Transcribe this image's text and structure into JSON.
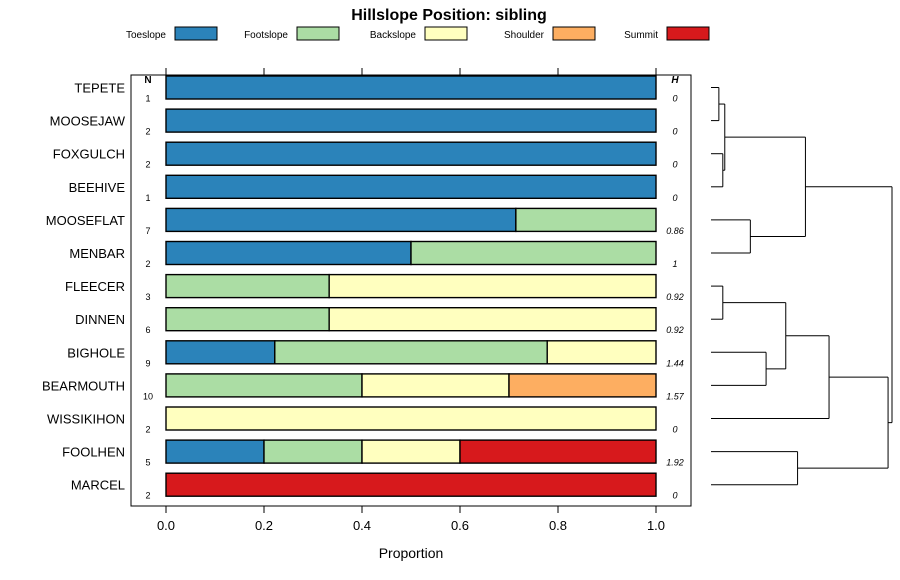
{
  "chart_data": {
    "type": "bar",
    "stacked": true,
    "orientation": "horizontal",
    "title": "Hillslope Position: sibling",
    "xlabel": "Proportion",
    "xlim": [
      0,
      1
    ],
    "xticks": [
      "0.0",
      "0.2",
      "0.4",
      "0.6",
      "0.8",
      "1.0"
    ],
    "n_header": "N",
    "h_header": "H",
    "legend_position": "top",
    "series": [
      {
        "name": "Toeslope",
        "color": "#2b83ba"
      },
      {
        "name": "Footslope",
        "color": "#abdda4"
      },
      {
        "name": "Backslope",
        "color": "#ffffbf"
      },
      {
        "name": "Shoulder",
        "color": "#fdae61"
      },
      {
        "name": "Summit",
        "color": "#d7191c"
      }
    ],
    "rows": [
      {
        "label": "TEPETE",
        "n": "1",
        "h": "0",
        "values": [
          1,
          0,
          0,
          0,
          0
        ]
      },
      {
        "label": "MOOSEJAW",
        "n": "2",
        "h": "0",
        "values": [
          1,
          0,
          0,
          0,
          0
        ]
      },
      {
        "label": "FOXGULCH",
        "n": "2",
        "h": "0",
        "values": [
          1,
          0,
          0,
          0,
          0
        ]
      },
      {
        "label": "BEEHIVE",
        "n": "1",
        "h": "0",
        "values": [
          1,
          0,
          0,
          0,
          0
        ]
      },
      {
        "label": "MOOSEFLAT",
        "n": "7",
        "h": "0.86",
        "values": [
          0.714,
          0.286,
          0,
          0,
          0
        ]
      },
      {
        "label": "MENBAR",
        "n": "2",
        "h": "1",
        "values": [
          0.5,
          0.5,
          0,
          0,
          0
        ]
      },
      {
        "label": "FLEECER",
        "n": "3",
        "h": "0.92",
        "values": [
          0,
          0.333,
          0.667,
          0,
          0
        ]
      },
      {
        "label": "DINNEN",
        "n": "6",
        "h": "0.92",
        "values": [
          0,
          0.333,
          0.667,
          0,
          0
        ]
      },
      {
        "label": "BIGHOLE",
        "n": "9",
        "h": "1.44",
        "values": [
          0.222,
          0.556,
          0.222,
          0,
          0
        ]
      },
      {
        "label": "BEARMOUTH",
        "n": "10",
        "h": "1.57",
        "values": [
          0,
          0.4,
          0.3,
          0.3,
          0
        ]
      },
      {
        "label": "WISSIKIHON",
        "n": "2",
        "h": "0",
        "values": [
          0,
          0,
          1,
          0,
          0
        ]
      },
      {
        "label": "FOOLHEN",
        "n": "5",
        "h": "1.92",
        "values": [
          0.2,
          0.2,
          0.2,
          0,
          0.4
        ]
      },
      {
        "label": "MARCEL",
        "n": "2",
        "h": "0",
        "values": [
          0,
          0,
          0,
          0,
          1
        ]
      }
    ],
    "dendrogram": {
      "merges": [
        {
          "a": "TEPETE",
          "b": "MOOSEJAW",
          "height": 0.02
        },
        {
          "a": "FOXGULCH",
          "b": "BEEHIVE",
          "height": 0.03
        },
        {
          "a": "m1",
          "b": "m2",
          "height": 0.035
        },
        {
          "a": "MOOSEFLAT",
          "b": "MENBAR",
          "height": 0.1
        },
        {
          "a": "m3",
          "b": "m4",
          "height": 0.24
        },
        {
          "a": "FLEECER",
          "b": "DINNEN",
          "height": 0.03
        },
        {
          "a": "BIGHOLE",
          "b": "BEARMOUTH",
          "height": 0.14
        },
        {
          "a": "m6",
          "b": "m7",
          "height": 0.19
        },
        {
          "a": "m8",
          "b": "WISSIKIHON",
          "height": 0.3
        },
        {
          "a": "FOOLHEN",
          "b": "MARCEL",
          "height": 0.22
        },
        {
          "a": "m9",
          "b": "m10",
          "height": 0.45
        },
        {
          "a": "m5",
          "b": "m11",
          "height": 0.46
        }
      ],
      "max_height": 0.46
    }
  }
}
